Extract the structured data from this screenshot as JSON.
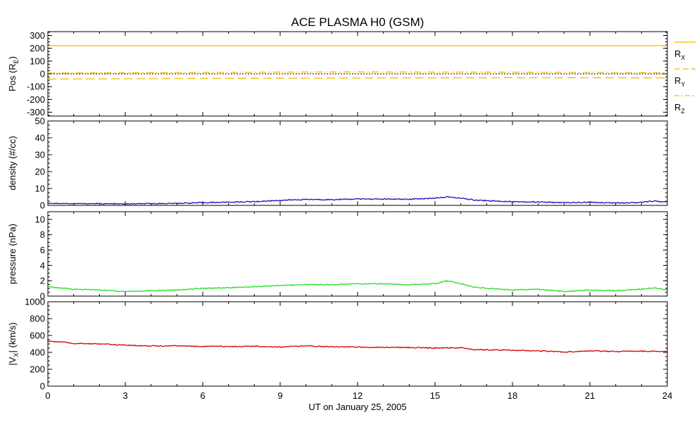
{
  "chart_data": {
    "title": "ACE PLASMA H0 (GSM)",
    "xlabel": "UT on January 25, 2005",
    "xlim": [
      0,
      24
    ],
    "xticks": [
      0,
      3,
      6,
      9,
      12,
      15,
      18,
      21,
      24
    ],
    "xtick_labels": [
      "0",
      "3",
      "6",
      "9",
      "12",
      "15",
      "18",
      "21",
      "24"
    ],
    "panels": [
      {
        "id": "pos",
        "type": "line",
        "ylabel": "Pos (RE)",
        "ylabel_parts": {
          "main": "Pos (R",
          "sub": "E",
          "tail": ")"
        },
        "ylim": [
          -330,
          330
        ],
        "yticks": [
          -300,
          -200,
          -100,
          0,
          100,
          200,
          300
        ],
        "ytick_labels": [
          "-300",
          "-200",
          "-100",
          "0",
          "100",
          "200",
          "300"
        ],
        "zero_line": true,
        "series": [
          {
            "name": "RX",
            "label_main": "R",
            "label_sub": "X",
            "color": "#f5b800",
            "dash": "solid",
            "x": [
              0,
              3,
              6,
              9,
              12,
              15,
              18,
              21,
              24
            ],
            "y": [
              220,
              220,
              220,
              220,
              220,
              220,
              220,
              220,
              220
            ]
          },
          {
            "name": "RY",
            "label_main": "R",
            "label_sub": "Y",
            "color": "#f5b800",
            "dash": "dashed",
            "x": [
              0,
              3,
              6,
              9,
              12,
              15,
              18,
              21,
              24
            ],
            "y": [
              -40,
              -38,
              -36,
              -34,
              -33,
              -31,
              -30,
              -30,
              -32
            ]
          },
          {
            "name": "RZ",
            "label_main": "R",
            "label_sub": "Z",
            "color": "#f5b800",
            "dash": "dashdot",
            "x": [
              0,
              3,
              6,
              9,
              12,
              15,
              18,
              21,
              24
            ],
            "y": [
              6,
              8,
              11,
              14,
              15,
              14,
              13,
              11,
              9
            ]
          }
        ]
      },
      {
        "id": "density",
        "type": "line",
        "ylabel": "density (#/cc)",
        "ylim": [
          0,
          50
        ],
        "yticks": [
          0,
          10,
          20,
          30,
          40,
          50
        ],
        "ytick_labels": [
          "0",
          "10",
          "20",
          "30",
          "40",
          "50"
        ],
        "series": [
          {
            "color": "#1c10b4",
            "x": [
              0,
              1,
              2,
              3,
              4,
              5,
              6,
              7,
              8,
              9,
              10,
              11,
              12,
              13,
              14,
              15,
              15.5,
              16,
              16.5,
              17,
              18,
              19,
              20,
              21,
              22,
              23,
              23.5,
              24
            ],
            "y": [
              1.3,
              1.0,
              1.0,
              0.8,
              1.0,
              1.2,
              1.6,
              1.9,
              2.2,
              3.0,
              3.5,
              3.4,
              3.8,
              3.7,
              3.6,
              4.3,
              5.0,
              4.2,
              3.2,
              2.8,
              2.2,
              2.0,
              1.6,
              1.8,
              1.5,
              1.8,
              2.6,
              1.9
            ]
          }
        ]
      },
      {
        "id": "pressure",
        "type": "line",
        "ylabel": "pressure (nPa)",
        "ylim": [
          0,
          11
        ],
        "yticks": [
          0,
          2,
          4,
          6,
          8,
          10
        ],
        "ytick_labels": [
          "0",
          "2",
          "4",
          "6",
          "8",
          "10"
        ],
        "series": [
          {
            "color": "#22e022",
            "x": [
              0,
              1,
              2,
              3,
              4,
              5,
              6,
              7,
              8,
              9,
              10,
              11,
              12,
              13,
              14,
              15,
              15.5,
              16,
              16.5,
              17,
              18,
              19,
              20,
              21,
              22,
              23,
              23.5,
              24
            ],
            "y": [
              1.2,
              0.9,
              0.8,
              0.6,
              0.7,
              0.8,
              1.0,
              1.1,
              1.2,
              1.4,
              1.5,
              1.5,
              1.6,
              1.6,
              1.5,
              1.6,
              2.0,
              1.6,
              1.2,
              1.0,
              0.8,
              0.9,
              0.6,
              0.8,
              0.7,
              0.9,
              1.1,
              0.8
            ]
          }
        ]
      },
      {
        "id": "vx",
        "type": "line",
        "ylabel": "|VX| (km/s)",
        "ylabel_parts": {
          "main": "|V",
          "sub": "X",
          "tail": "| (km/s)"
        },
        "ylim": [
          0,
          1000
        ],
        "yticks": [
          0,
          200,
          400,
          600,
          800,
          1000
        ],
        "ytick_labels": [
          "0",
          "200",
          "400",
          "600",
          "800",
          "1000"
        ],
        "series": [
          {
            "color": "#d40000",
            "x": [
              0,
              0.5,
              1,
              2,
              3,
              4,
              5,
              6,
              7,
              8,
              9,
              10,
              11,
              12,
              13,
              14,
              15,
              16,
              16.5,
              17,
              18,
              19,
              20,
              21,
              22,
              23,
              24
            ],
            "y": [
              530,
              525,
              505,
              500,
              485,
              475,
              478,
              470,
              470,
              472,
              465,
              475,
              468,
              462,
              460,
              458,
              452,
              455,
              432,
              430,
              425,
              418,
              405,
              418,
              412,
              415,
              408
            ]
          }
        ]
      }
    ]
  }
}
